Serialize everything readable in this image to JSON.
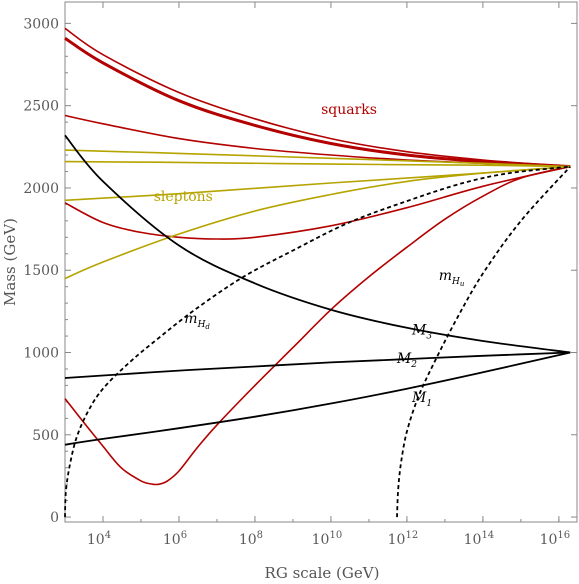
{
  "chart_data": {
    "type": "line",
    "xlabel": "RG scale (GeV)",
    "ylabel": "Mass (GeV)",
    "x_scale": "log",
    "xlim": [
      1000,
      3e+16
    ],
    "ylim": [
      -30,
      3130
    ],
    "x_ticks": [
      {
        "value": 10000.0,
        "base": "10",
        "exp": "4"
      },
      {
        "value": 1000000.0,
        "base": "10",
        "exp": "6"
      },
      {
        "value": 100000000.0,
        "base": "10",
        "exp": "8"
      },
      {
        "value": 10000000000.0,
        "base": "10",
        "exp": "10"
      },
      {
        "value": 1000000000000.0,
        "base": "10",
        "exp": "12"
      },
      {
        "value": 100000000000000.0,
        "base": "10",
        "exp": "14"
      },
      {
        "value": 1e+16,
        "base": "10",
        "exp": "16"
      }
    ],
    "y_ticks": [
      0,
      500,
      1000,
      1500,
      2000,
      2500,
      3000
    ],
    "grid": false,
    "colors": {
      "squark": "#b30000",
      "slepton": "#b5a400",
      "gaugino": "#000000",
      "higgs": "#000000",
      "axis": "#888888"
    },
    "series": [
      {
        "group": "squark",
        "x": [
          1000.0,
          10000.0,
          1000000.0,
          100000000.0,
          10000000000.0,
          1000000000000.0,
          100000000000000.0,
          2e+16
        ],
        "y": [
          2970,
          2810,
          2580,
          2420,
          2300,
          2220,
          2170,
          2130
        ]
      },
      {
        "group": "squark",
        "heavy": true,
        "x": [
          1000.0,
          10000.0,
          1000000.0,
          100000000.0,
          10000000000.0,
          1000000000000.0,
          100000000000000.0,
          2e+16
        ],
        "y": [
          2910,
          2760,
          2530,
          2380,
          2270,
          2200,
          2160,
          2130
        ]
      },
      {
        "group": "squark",
        "x": [
          1000.0,
          10000.0,
          1000000.0,
          100000000.0,
          10000000000.0,
          1000000000000.0,
          100000000000000.0,
          2e+16
        ],
        "y": [
          2440,
          2390,
          2300,
          2240,
          2200,
          2170,
          2150,
          2130
        ]
      },
      {
        "group": "squark",
        "x": [
          1000.0,
          10000.0,
          100000.0,
          1000000.0,
          10000000.0,
          100000000.0,
          10000000000.0,
          1000000000000.0,
          100000000000000.0,
          2e+16
        ],
        "y": [
          1910,
          1790,
          1730,
          1700,
          1690,
          1700,
          1770,
          1880,
          2010,
          2130
        ]
      },
      {
        "group": "squark",
        "x": [
          1000.0,
          3000.0,
          10000.0,
          30000.0,
          100000.0,
          200000.0,
          300000.0,
          500000.0,
          1000000.0,
          3000000.0,
          10000000.0,
          100000000.0,
          1000000000.0,
          10000000000.0,
          100000000000.0,
          1000000000000.0,
          10000000000000.0,
          100000000000000.0,
          1000000000000000.0,
          2e+16
        ],
        "y": [
          720,
          580,
          430,
          300,
          220,
          200,
          200,
          220,
          280,
          420,
          560,
          800,
          1030,
          1260,
          1460,
          1640,
          1810,
          1950,
          2060,
          2130
        ]
      },
      {
        "group": "slepton",
        "x": [
          1000.0,
          1000000.0,
          10000000000.0,
          100000000000000.0,
          2e+16
        ],
        "y": [
          2230,
          2210,
          2180,
          2150,
          2130
        ]
      },
      {
        "group": "slepton",
        "x": [
          1000.0,
          1000000.0,
          10000000000.0,
          100000000000000.0,
          2e+16
        ],
        "y": [
          2160,
          2155,
          2145,
          2138,
          2130
        ]
      },
      {
        "group": "slepton",
        "x": [
          1000.0,
          1000000.0,
          10000000000.0,
          100000000000000.0,
          2e+16
        ],
        "y": [
          1925,
          1965,
          2030,
          2090,
          2130
        ]
      },
      {
        "group": "slepton",
        "x": [
          1000.0,
          10000.0,
          1000000.0,
          100000000.0,
          10000000000.0,
          1000000000000.0,
          100000000000000.0,
          2e+16
        ],
        "y": [
          1450,
          1550,
          1720,
          1860,
          1960,
          2040,
          2090,
          2130
        ]
      },
      {
        "group": "gaugino",
        "label": "M3",
        "x": [
          1000.0,
          10000.0,
          1000000.0,
          100000000.0,
          10000000000.0,
          1000000000000.0,
          100000000000000.0,
          2e+16
        ],
        "y": [
          2320,
          2040,
          1650,
          1420,
          1260,
          1150,
          1070,
          1000
        ]
      },
      {
        "group": "gaugino",
        "label": "M2",
        "x": [
          1000.0,
          10000.0,
          1000000.0,
          100000000.0,
          10000000000.0,
          1000000000000.0,
          100000000000000.0,
          2e+16
        ],
        "y": [
          845,
          860,
          890,
          915,
          940,
          960,
          980,
          1000
        ]
      },
      {
        "group": "gaugino",
        "label": "M1",
        "x": [
          1000.0,
          10000.0,
          1000000.0,
          100000000.0,
          10000000000.0,
          1000000000000.0,
          100000000000000.0,
          2e+16
        ],
        "y": [
          440,
          475,
          540,
          610,
          690,
          780,
          880,
          1000
        ]
      },
      {
        "group": "higgs",
        "label": "mHd",
        "dashed": true,
        "x": [
          1000.0,
          1050.0,
          1300.0,
          2000.0,
          4000.0,
          10000.0,
          50000.0,
          300000.0,
          3000000.0,
          50000000.0,
          1000000000.0,
          30000000000.0,
          1000000000000.0,
          30000000000000.0,
          500000000000000.0,
          2e+16
        ],
        "y": [
          0,
          150,
          300,
          480,
          640,
          780,
          940,
          1090,
          1270,
          1460,
          1620,
          1790,
          1920,
          2030,
          2090,
          2130
        ]
      },
      {
        "group": "higgs",
        "label": "mHu",
        "dashed": true,
        "x": [
          550000000000.0,
          590000000000.0,
          700000000000.0,
          1000000000000.0,
          2000000000000.0,
          5000000000000.0,
          20000000000000.0,
          100000000000000.0,
          1000000000000000.0,
          2e+16
        ],
        "y": [
          0,
          170,
          330,
          520,
          730,
          930,
          1200,
          1480,
          1800,
          2130
        ]
      }
    ],
    "annotations": [
      {
        "text": "squarks",
        "group": "squark",
        "x": 30000000000.0,
        "y": 2450
      },
      {
        "text": "sleptons",
        "group": "slepton",
        "x": 1300000.0,
        "y": 1920
      },
      {
        "text": "M",
        "sub": "3",
        "group": "gaugino",
        "x": 2500000000000.0,
        "y": 1110
      },
      {
        "text": "M",
        "sub": "2",
        "group": "gaugino",
        "x": 1000000000000.0,
        "y": 935
      },
      {
        "text": "M",
        "sub": "1",
        "group": "gaugino",
        "x": 2500000000000.0,
        "y": 700
      },
      {
        "text": "m",
        "sub": "H",
        "subsub": "d",
        "group": "higgs",
        "x": 3000000.0,
        "y": 1180
      },
      {
        "text": "m",
        "sub": "H",
        "subsub": "u",
        "group": "higgs",
        "x": 15000000000000.0,
        "y": 1440
      }
    ]
  }
}
